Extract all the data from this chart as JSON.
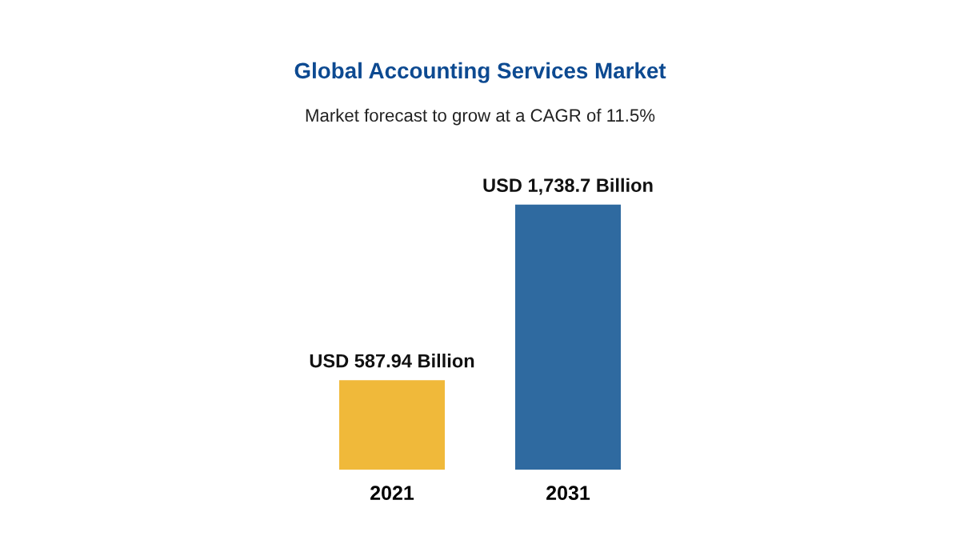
{
  "chart_data": {
    "type": "bar",
    "title": "Global Accounting Services Market",
    "subtitle": "Market forecast to grow at a CAGR of 11.5%",
    "categories": [
      "2021",
      "2031"
    ],
    "values": [
      587.94,
      1738.7
    ],
    "colors": [
      "#f0b93a",
      "#2f6aa0"
    ],
    "value_labels": [
      "USD 587.94 Billion",
      "USD 1,738.7 Billion"
    ],
    "tick_labels": "x"
  }
}
